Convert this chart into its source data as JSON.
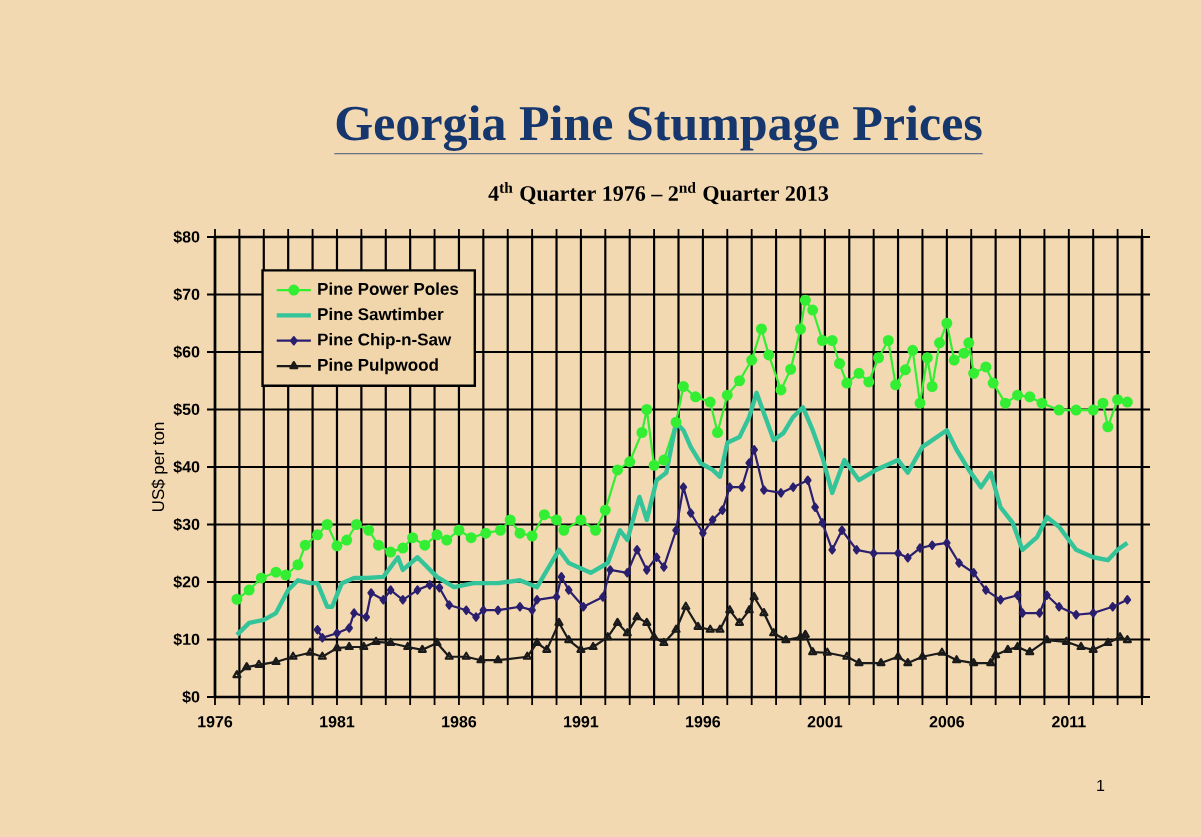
{
  "chart_data": {
    "type": "line",
    "title": "Georgia Pine Stumpage Prices",
    "subtitle": "4$^{th}$ Quarter 1976 – 2$^{nd}$ Quarter 2013",
    "ylabel": "US$ per ton",
    "xlim": [
      1976,
      2014
    ],
    "xticks": [
      {
        "value": 1976,
        "label": "1976"
      },
      {
        "value": 1977,
        "label": null
      },
      {
        "value": 1978,
        "label": null
      },
      {
        "value": 1979,
        "label": null
      },
      {
        "value": 1980,
        "label": null
      },
      {
        "value": 1981,
        "label": "1981"
      },
      {
        "value": 1982,
        "label": null
      },
      {
        "value": 1983,
        "label": null
      },
      {
        "value": 1984,
        "label": null
      },
      {
        "value": 1985,
        "label": null
      },
      {
        "value": 1986,
        "label": "1986"
      },
      {
        "value": 1987,
        "label": null
      },
      {
        "value": 1988,
        "label": null
      },
      {
        "value": 1989,
        "label": null
      },
      {
        "value": 1990,
        "label": null
      },
      {
        "value": 1991,
        "label": "1991"
      },
      {
        "value": 1992,
        "label": null
      },
      {
        "value": 1993,
        "label": null
      },
      {
        "value": 1994,
        "label": null
      },
      {
        "value": 1995,
        "label": null
      },
      {
        "value": 1996,
        "label": "1996"
      },
      {
        "value": 1997,
        "label": null
      },
      {
        "value": 1998,
        "label": null
      },
      {
        "value": 1999,
        "label": null
      },
      {
        "value": 2000,
        "label": null
      },
      {
        "value": 2001,
        "label": "2001"
      },
      {
        "value": 2002,
        "label": null
      },
      {
        "value": 2003,
        "label": null
      },
      {
        "value": 2004,
        "label": null
      },
      {
        "value": 2005,
        "label": null
      },
      {
        "value": 2006,
        "label": "2006"
      },
      {
        "value": 2007,
        "label": null
      },
      {
        "value": 2008,
        "label": null
      },
      {
        "value": 2009,
        "label": null
      },
      {
        "value": 2010,
        "label": null
      },
      {
        "value": 2011,
        "label": "2011"
      },
      {
        "value": 2012,
        "label": null
      },
      {
        "value": 2013,
        "label": null
      },
      {
        "value": 2014,
        "label": null
      }
    ],
    "ylim": [
      0,
      80
    ],
    "yticks": [
      {
        "value": 0,
        "label": "$0"
      },
      {
        "value": 10,
        "label": "$10"
      },
      {
        "value": 20,
        "label": "$20"
      },
      {
        "value": 30,
        "label": "$30"
      },
      {
        "value": 40,
        "label": "$40"
      },
      {
        "value": 50,
        "label": "$50"
      },
      {
        "value": 60,
        "label": "$60"
      },
      {
        "value": 70,
        "label": "$70"
      },
      {
        "value": 80,
        "label": "$80"
      }
    ],
    "grid": true,
    "legend": "top left",
    "annotations": [
      "1"
    ],
    "series": [
      {
        "name": "Pine Power Poles",
        "color": "#33ee33",
        "marker": "circle",
        "x": [
          1976.9,
          1977.4,
          1977.9,
          1978.5,
          1978.9,
          1979.4,
          1979.7,
          1980.2,
          1980.6,
          1981.0,
          1981.4,
          1981.8,
          1982.3,
          1982.7,
          1983.2,
          1983.7,
          1984.1,
          1984.6,
          1985.1,
          1985.5,
          1986.0,
          1986.5,
          1987.1,
          1987.7,
          1988.1,
          1988.5,
          1989.0,
          1989.5,
          1990.0,
          1990.3,
          1991.0,
          1991.6,
          1992.0,
          1992.5,
          1993.0,
          1993.5,
          1993.7,
          1994.0,
          1994.4,
          1994.9,
          1995.2,
          1995.7,
          1996.3,
          1996.6,
          1997.0,
          1997.5,
          1998.0,
          1998.4,
          1998.7,
          1999.2,
          1999.6,
          2000.0,
          2000.2,
          2000.5,
          2000.9,
          2001.3,
          2001.6,
          2001.9,
          2002.4,
          2002.8,
          2003.2,
          2003.6,
          2003.9,
          2004.3,
          2004.6,
          2004.9,
          2005.2,
          2005.4,
          2005.7,
          2006.0,
          2006.3,
          2006.7,
          2006.9,
          2007.1,
          2007.6,
          2007.9,
          2008.4,
          2008.9,
          2009.4,
          2009.9,
          2010.6,
          2011.3,
          2012.0,
          2012.4,
          2012.6,
          2013.0,
          2013.4
        ],
        "values": [
          17,
          18.6,
          20.7,
          21.7,
          21.2,
          23,
          26.4,
          28.2,
          30,
          26.3,
          27.3,
          30,
          29,
          26.4,
          25.2,
          25.9,
          27.7,
          26.4,
          28.2,
          27.3,
          29,
          27.7,
          28.5,
          29,
          30.8,
          28.5,
          28,
          31.7,
          30.8,
          29,
          30.8,
          29,
          32.5,
          39.5,
          40.9,
          46,
          50,
          40.3,
          41.2,
          47.8,
          54,
          52.2,
          51.3,
          46,
          52.5,
          55,
          58.6,
          64,
          59.5,
          53.4,
          57,
          64,
          69,
          67.3,
          62,
          62,
          58,
          54.6,
          56.3,
          54.8,
          59,
          62,
          54.3,
          56.9,
          60.3,
          51.1,
          59,
          54,
          61.6,
          65,
          58.6,
          59.8,
          61.6,
          56.3,
          57.4,
          54.6,
          51.1,
          52.5,
          52.2,
          51.1,
          49.9,
          49.9,
          49.9,
          51.1,
          47,
          51.7,
          51.3
        ]
      },
      {
        "name": "Pine Sawtimber",
        "color": "#33c49a",
        "marker": "none",
        "x": [
          1976.9,
          1977.4,
          1978.0,
          1978.5,
          1979.0,
          1979.4,
          1979.9,
          1980.2,
          1980.6,
          1980.8,
          1981.2,
          1981.7,
          1982.2,
          1982.9,
          1983.5,
          1983.7,
          1984.3,
          1985.1,
          1985.8,
          1986.6,
          1987.1,
          1987.6,
          1988.5,
          1989.2,
          1990.1,
          1990.5,
          1991.4,
          1992.1,
          1992.6,
          1992.9,
          1993.4,
          1993.7,
          1994.1,
          1994.5,
          1994.9,
          1995.2,
          1995.5,
          1995.9,
          1996.4,
          1996.7,
          1997.0,
          1997.5,
          1997.9,
          1998.2,
          1998.6,
          1998.9,
          1999.3,
          1999.7,
          2000.1,
          2000.5,
          2000.9,
          2001.3,
          2001.8,
          2002.4,
          2003.1,
          2004.0,
          2004.4,
          2005.0,
          2006.0,
          2006.4,
          2006.9,
          2007.4,
          2007.8,
          2008.2,
          2008.7,
          2009.1,
          2009.7,
          2010.1,
          2010.6,
          2011.3,
          2012.0,
          2012.6,
          2013.0,
          2013.4
        ],
        "values": [
          10.8,
          12.9,
          13.4,
          14.6,
          18.6,
          20.3,
          19.8,
          19.8,
          15.7,
          15.7,
          19.8,
          20.7,
          20.7,
          20.9,
          24.3,
          22.1,
          24.3,
          20.9,
          19.1,
          19.8,
          19.8,
          19.8,
          20.3,
          19.1,
          25.6,
          23.3,
          21.6,
          23.3,
          29,
          27.3,
          34.8,
          30.8,
          37.7,
          39,
          47.7,
          46.4,
          43.5,
          40.7,
          39.5,
          38.3,
          44.2,
          45.2,
          48.7,
          52.9,
          48.2,
          44.7,
          45.9,
          48.7,
          50.4,
          46.4,
          41.7,
          35.5,
          41.2,
          37.7,
          39.5,
          41.2,
          39,
          43.5,
          46.4,
          43,
          39.5,
          36.5,
          39,
          33,
          30.3,
          25.6,
          27.8,
          31.3,
          29.6,
          25.6,
          24.3,
          23.8,
          25.6,
          26.8
        ]
      },
      {
        "name": "Pine Chip-n-Saw",
        "color": "#2a1f6e",
        "marker": "diamond",
        "x": [
          1980.2,
          1980.4,
          1981.0,
          1981.5,
          1981.7,
          1982.2,
          1982.4,
          1982.9,
          1983.2,
          1983.7,
          1984.3,
          1984.8,
          1985.2,
          1985.6,
          1986.3,
          1986.7,
          1987.0,
          1987.6,
          1988.5,
          1989.0,
          1989.2,
          1990.0,
          1990.2,
          1990.5,
          1991.1,
          1991.9,
          1992.2,
          1992.9,
          1993.3,
          1993.7,
          1994.1,
          1994.4,
          1994.9,
          1995.2,
          1995.5,
          1996.0,
          1996.4,
          1996.8,
          1997.1,
          1997.6,
          1997.9,
          1998.1,
          1998.5,
          1999.2,
          1999.7,
          2000.3,
          2000.6,
          2000.9,
          2001.3,
          2001.7,
          2002.3,
          2003.0,
          2004.0,
          2004.4,
          2004.9,
          2005.4,
          2006.0,
          2006.5,
          2007.1,
          2007.6,
          2008.2,
          2008.9,
          2009.1,
          2009.8,
          2010.1,
          2010.6,
          2011.3,
          2012.0,
          2012.8,
          2013.4
        ],
        "values": [
          11.7,
          10.3,
          11.1,
          12,
          14.6,
          13.9,
          18.1,
          16.9,
          18.6,
          16.9,
          18.6,
          19.5,
          19,
          16,
          15.1,
          13.9,
          15.1,
          15.1,
          15.7,
          15.1,
          16.9,
          17.4,
          20.9,
          18.6,
          15.7,
          17.4,
          22.1,
          21.6,
          25.6,
          22.1,
          24.3,
          22.6,
          29,
          36.5,
          32,
          28.5,
          30.8,
          32.5,
          36.5,
          36.5,
          40.7,
          43,
          36,
          35.5,
          36.5,
          37.7,
          33,
          30.3,
          25.6,
          29,
          25.6,
          25,
          25,
          24.2,
          25.9,
          26.4,
          26.8,
          23.3,
          21.6,
          18.6,
          16.9,
          17.7,
          14.6,
          14.6,
          17.7,
          15.7,
          14.3,
          14.6,
          15.7,
          16.9
        ]
      },
      {
        "name": "Pine Pulpwood",
        "color": "#1a1a1a",
        "marker": "triangle",
        "x": [
          1976.9,
          1977.3,
          1977.8,
          1978.5,
          1979.2,
          1979.9,
          1980.4,
          1981.0,
          1981.5,
          1982.1,
          1982.6,
          1983.2,
          1983.9,
          1984.5,
          1985.1,
          1985.6,
          1986.3,
          1986.9,
          1987.6,
          1988.8,
          1989.2,
          1989.6,
          1990.1,
          1990.5,
          1991.0,
          1991.5,
          1992.1,
          1992.5,
          1992.9,
          1993.3,
          1993.7,
          1994.0,
          1994.4,
          1994.9,
          1995.3,
          1995.8,
          1996.3,
          1996.7,
          1997.1,
          1997.5,
          1997.9,
          1998.1,
          1998.5,
          1998.9,
          1999.4,
          2000.0,
          2000.2,
          2000.5,
          2001.1,
          2001.9,
          2002.4,
          2003.3,
          2004.0,
          2004.4,
          2005.0,
          2005.8,
          2006.4,
          2007.1,
          2007.8,
          2008.0,
          2008.5,
          2008.9,
          2009.4,
          2010.1,
          2010.9,
          2011.5,
          2012.0,
          2012.6,
          2013.1,
          2013.4
        ],
        "values": [
          3.8,
          5.2,
          5.6,
          6.1,
          7,
          7.7,
          7,
          8.5,
          8.7,
          8.7,
          9.6,
          9.4,
          8.7,
          8.2,
          9.4,
          7,
          7,
          6.4,
          6.4,
          7,
          9.4,
          8.2,
          12.9,
          9.9,
          8.2,
          8.7,
          10.4,
          12.9,
          11.1,
          13.9,
          12.9,
          10.4,
          9.4,
          11.7,
          15.7,
          12.2,
          11.7,
          11.7,
          15.1,
          12.9,
          15.1,
          17.4,
          14.6,
          11.1,
          9.9,
          10.4,
          10.8,
          7.8,
          7.7,
          7,
          5.9,
          5.9,
          7,
          5.9,
          7,
          7.7,
          6.4,
          5.9,
          5.9,
          7.3,
          8.2,
          8.7,
          7.8,
          9.9,
          9.6,
          8.7,
          8.2,
          9.4,
          10.4,
          9.9
        ]
      }
    ]
  }
}
